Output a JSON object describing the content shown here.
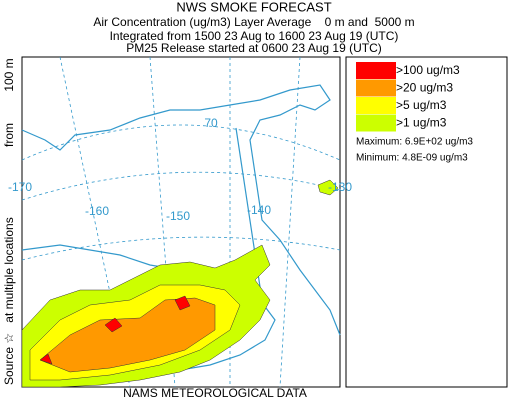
{
  "header": {
    "lines": [
      "NWS SMOKE FORECAST",
      "Air Concentration (ug/m3) Layer Average    0 m and  5000 m",
      "Integrated from 1500 23 Aug to 1600 23 Aug 19 (UTC)",
      "PM25 Release started at 0600 23 Aug 19 (UTC)"
    ]
  },
  "side_label": [
    "Source ☆",
    "at multiple locations",
    "from",
    "100 m"
  ],
  "footer": "NAMS METEOROLOGICAL DATA",
  "legend": {
    "items": [
      {
        "label": ">100 ug/m3",
        "color": "#ff0000"
      },
      {
        "label": ">20 ug/m3",
        "color": "#ff9900"
      },
      {
        "label": ">5 ug/m3",
        "color": "#ffff00"
      },
      {
        "label": ">1 ug/m3",
        "color": "#ccff00"
      }
    ],
    "stats": [
      "Maximum: 6.9E+02 ug/m3",
      "Minimum: 4.8E-09 ug/m3"
    ]
  },
  "map": {
    "labels": [
      "-170",
      "-160",
      "-150",
      "-140",
      "-130",
      "70"
    ]
  }
}
